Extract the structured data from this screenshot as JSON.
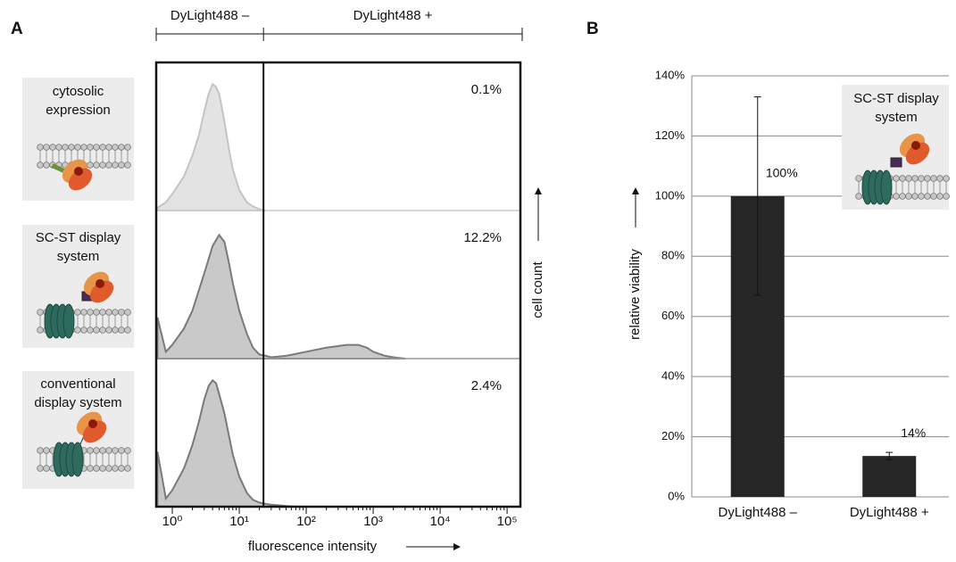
{
  "chart_data": [
    {
      "type": "area",
      "panel": "A",
      "x_label": "fluorescence intensity",
      "y_label": "cell count",
      "xlog": true,
      "xlim": [
        0.575,
        158000
      ],
      "xticks": [
        {
          "value": 1,
          "label": "10⁰"
        },
        {
          "value": 10,
          "label": "10¹"
        },
        {
          "value": 100,
          "label": "10²"
        },
        {
          "value": 1000,
          "label": "10³"
        },
        {
          "value": 10000,
          "label": "10⁴"
        },
        {
          "value": 100000,
          "label": "10⁵"
        }
      ],
      "ylim": [
        0,
        100
      ],
      "gate": 23,
      "gate_labels": [
        "DyLight488 –",
        "DyLight488 +"
      ],
      "series": [
        {
          "name": "cytosolic expression",
          "color": "#e3e3e3",
          "line_color": "#c4c4c4",
          "gate_label": "0.1%",
          "x": [
            0.6,
            0.8,
            1,
            1.5,
            2,
            2.5,
            3,
            3.5,
            4,
            4.5,
            5,
            6,
            7,
            8,
            10,
            13,
            16,
            20,
            25
          ],
          "values": [
            2,
            6,
            12,
            25,
            40,
            55,
            72,
            85,
            92,
            90,
            85,
            65,
            45,
            30,
            15,
            6,
            3,
            1,
            0
          ]
        },
        {
          "name": "SC-ST display system",
          "color": "#c9c9c9",
          "line_color": "#7a7a7a",
          "gate_label": "12.2%",
          "x": [
            0.6,
            0.8,
            1,
            1.5,
            2,
            3,
            4,
            5,
            6,
            7,
            8,
            10,
            13,
            16,
            20,
            25,
            30,
            50,
            100,
            200,
            400,
            600,
            800,
            1000,
            1500,
            2000,
            3000
          ],
          "values": [
            30,
            5,
            10,
            22,
            35,
            62,
            82,
            90,
            85,
            70,
            55,
            35,
            18,
            8,
            3,
            2,
            1,
            2,
            5,
            8,
            10,
            10,
            8,
            5,
            2,
            1,
            0
          ]
        },
        {
          "name": "conventional display system",
          "color": "#c9c9c9",
          "line_color": "#7a7a7a",
          "gate_label": "2.4%",
          "x": [
            0.6,
            0.8,
            1,
            1.5,
            2,
            2.5,
            3,
            3.5,
            4,
            4.5,
            5,
            6,
            7,
            8,
            10,
            13,
            16,
            20,
            25,
            30,
            40,
            50,
            70
          ],
          "values": [
            40,
            6,
            12,
            28,
            45,
            62,
            78,
            88,
            92,
            90,
            82,
            68,
            52,
            38,
            22,
            10,
            5,
            3,
            2,
            1.5,
            1,
            0.5,
            0
          ]
        }
      ]
    },
    {
      "type": "bar",
      "panel": "B",
      "y_label": "relative viability",
      "inset_label": "SC-ST display system",
      "categories": [
        "DyLight488 –",
        "DyLight488 +"
      ],
      "values": [
        100,
        13.6
      ],
      "value_labels": [
        "100%",
        "14%"
      ],
      "errors": [
        33,
        1.2
      ],
      "color": "#262626",
      "grid": true,
      "ylim": [
        0,
        140
      ],
      "yticks": [
        {
          "value": 0,
          "label": "0%"
        },
        {
          "value": 20,
          "label": "20%"
        },
        {
          "value": 40,
          "label": "40%"
        },
        {
          "value": 60,
          "label": "60%"
        },
        {
          "value": 80,
          "label": "80%"
        },
        {
          "value": 100,
          "label": "100%"
        },
        {
          "value": 120,
          "label": "120%"
        },
        {
          "value": 140,
          "label": "140%"
        }
      ]
    }
  ]
}
